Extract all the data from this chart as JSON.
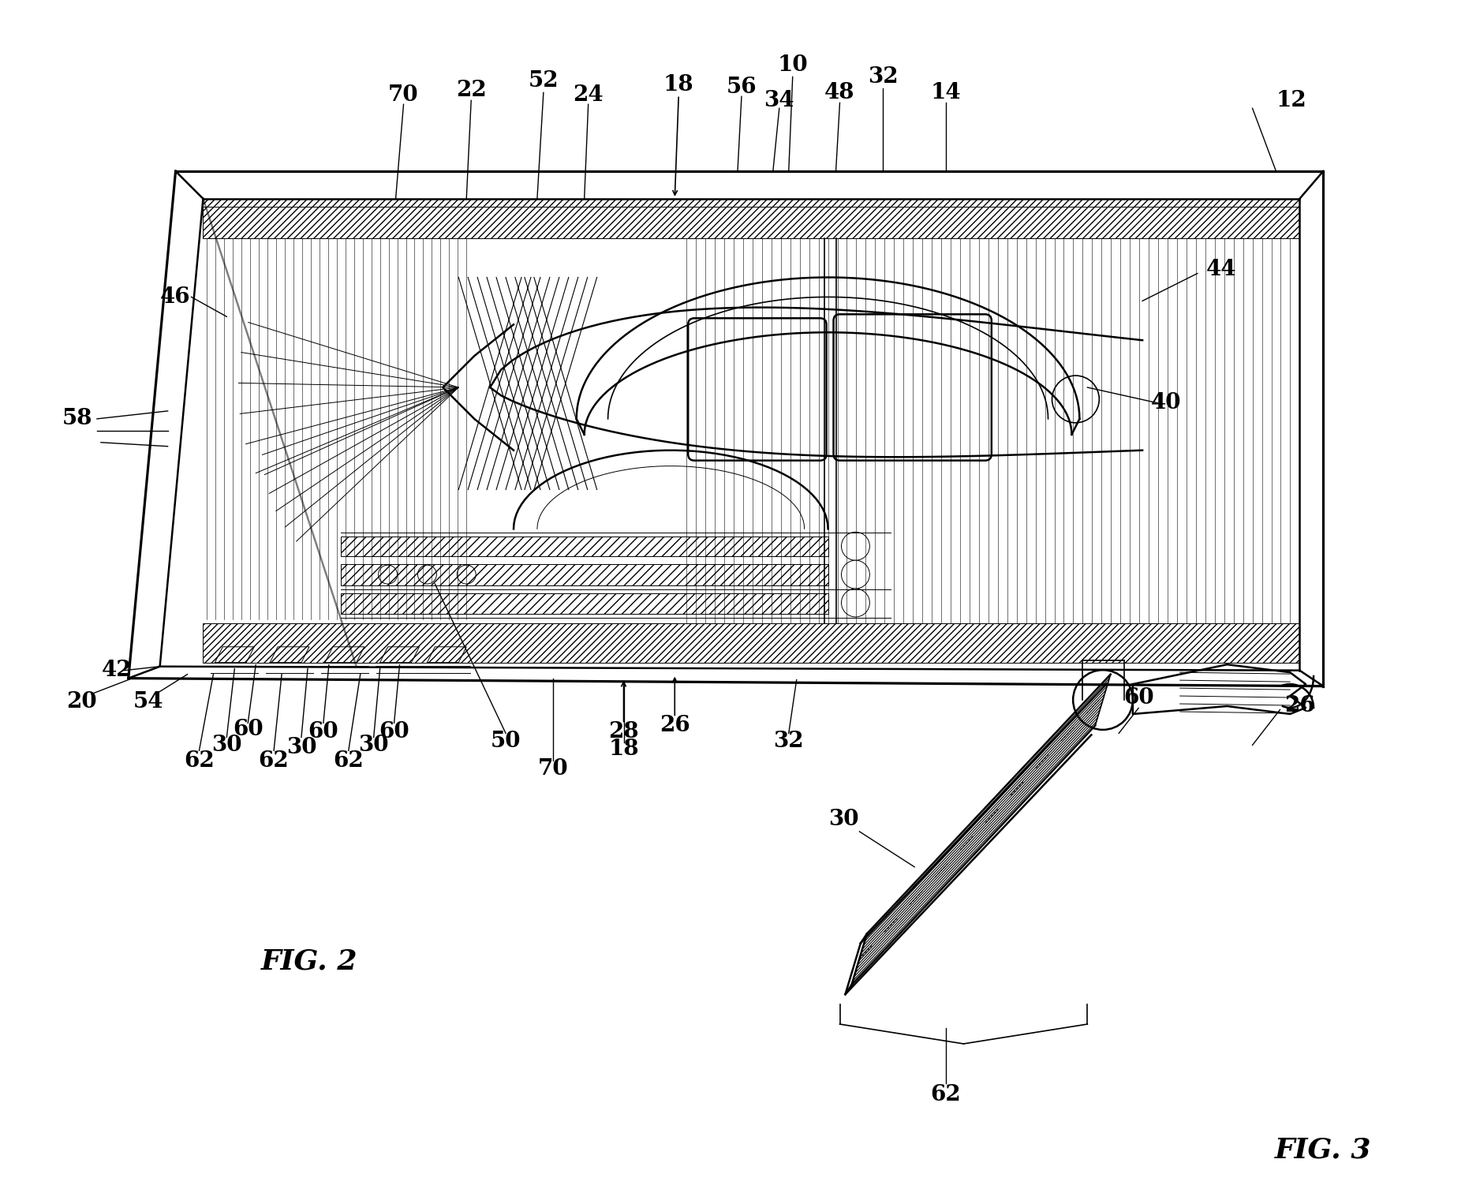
{
  "fig_width": 18.57,
  "fig_height": 15.26,
  "bg_color": "#ffffff",
  "line_color": "#000000",
  "fig2_caption": "FIG. 2",
  "fig3_caption": "FIG. 3"
}
